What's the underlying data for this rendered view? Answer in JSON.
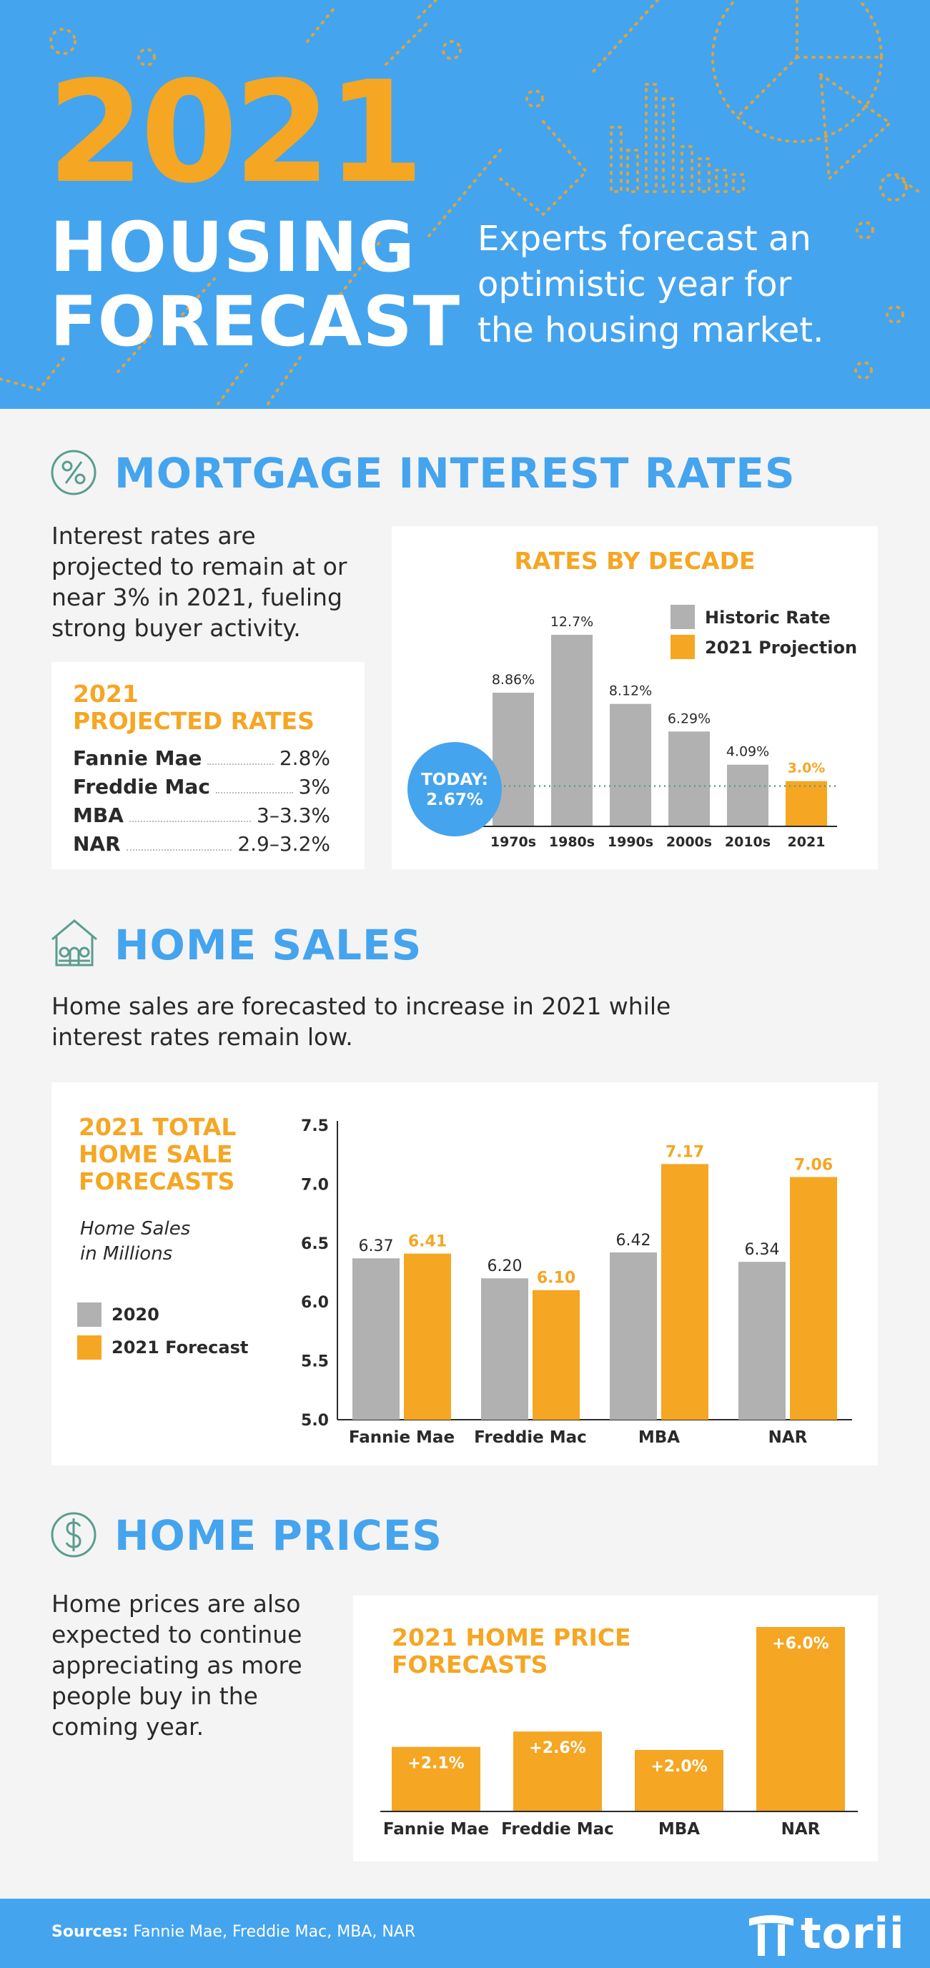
{
  "colors": {
    "blue": "#45a4ee",
    "orange": "#f5a623",
    "gray": "#b1b1b1",
    "dark": "#2a2a2a",
    "teal": "#5a9d8e"
  },
  "header": {
    "year": "2021",
    "title_line1": "HOUSING",
    "title_line2": "FORECAST",
    "tagline_lines": [
      "Experts forecast an",
      "optimistic year for",
      "the housing market."
    ]
  },
  "mortgage": {
    "icon": "percent-icon",
    "title": "MORTGAGE INTEREST RATES",
    "description_lines": [
      "Interest rates are",
      "projected to remain at or",
      "near 3% in 2021, fueling",
      "strong buyer activity."
    ],
    "projected_title_lines": [
      "2021",
      "PROJECTED RATES"
    ],
    "projected_rates": [
      {
        "label": "Fannie Mae",
        "value": "2.8%"
      },
      {
        "label": "Freddie Mac",
        "value": "3%"
      },
      {
        "label": "MBA",
        "value": "3–3.3%"
      },
      {
        "label": "NAR",
        "value": "2.9–3.2%"
      }
    ]
  },
  "home_sales": {
    "icon": "house-icon",
    "title": "HOME SALES",
    "description_lines": [
      "Home sales are forecasted to increase in 2021 while",
      "interest rates remain low."
    ],
    "chart_title_lines": [
      "2021 TOTAL",
      "HOME SALE",
      "FORECASTS"
    ],
    "unit_lines": [
      "Home Sales",
      "in Millions"
    ]
  },
  "home_prices": {
    "icon": "dollar-icon",
    "title": "HOME PRICES",
    "description_lines": [
      "Home prices are also",
      "expected to continue",
      "appreciating as more",
      "people buy in the",
      "coming year."
    ],
    "chart_title_lines": [
      "2021 HOME PRICE",
      "FORECASTS"
    ]
  },
  "footer": {
    "sources_label": "Sources:",
    "sources": "Fannie Mae, Freddie Mac, MBA, NAR",
    "brand": "torii",
    "brand_icon": "torii-gate-icon"
  },
  "chart_data": [
    {
      "type": "bar",
      "title": "RATES BY DECADE",
      "categories": [
        "1970s",
        "1980s",
        "1990s",
        "2000s",
        "2010s",
        "2021"
      ],
      "values": [
        8.86,
        12.7,
        8.12,
        6.29,
        4.09,
        3.0
      ],
      "value_labels": [
        "8.86%",
        "12.7%",
        "8.12%",
        "6.29%",
        "4.09%",
        "3.0%"
      ],
      "series_per_bar": [
        "Historic Rate",
        "Historic Rate",
        "Historic Rate",
        "Historic Rate",
        "Historic Rate",
        "2021 Projection"
      ],
      "legend": [
        "Historic Rate",
        "2021 Projection"
      ],
      "legend_position": "top-right",
      "reference_line": {
        "value": 2.67,
        "label_lines": [
          "TODAY:",
          "2.67%"
        ]
      },
      "ylim": [
        0,
        13.5
      ]
    },
    {
      "type": "bar",
      "title": "2021 TOTAL HOME SALE FORECASTS",
      "ylabel": "Home Sales in Millions",
      "categories": [
        "Fannie Mae",
        "Freddie Mac",
        "MBA",
        "NAR"
      ],
      "series": [
        {
          "name": "2020",
          "values": [
            6.37,
            6.2,
            6.42,
            6.34
          ],
          "labels": [
            "6.37",
            "6.20",
            "6.42",
            "6.34"
          ]
        },
        {
          "name": "2021 Forecast",
          "values": [
            6.41,
            6.1,
            7.17,
            7.06
          ],
          "labels": [
            "6.41",
            "6.10",
            "7.17",
            "7.06"
          ]
        }
      ],
      "yticks": [
        "5.0",
        "5.5",
        "6.0",
        "6.5",
        "7.0",
        "7.5"
      ],
      "ylim": [
        5.0,
        7.5
      ],
      "legend_position": "left"
    },
    {
      "type": "bar",
      "title": "2021 HOME PRICE FORECASTS",
      "categories": [
        "Fannie Mae",
        "Freddie Mac",
        "MBA",
        "NAR"
      ],
      "values": [
        2.1,
        2.6,
        2.0,
        6.0
      ],
      "value_labels": [
        "+2.1%",
        "+2.6%",
        "+2.0%",
        "+6.0%"
      ],
      "ylim": [
        0,
        6.0
      ]
    }
  ]
}
